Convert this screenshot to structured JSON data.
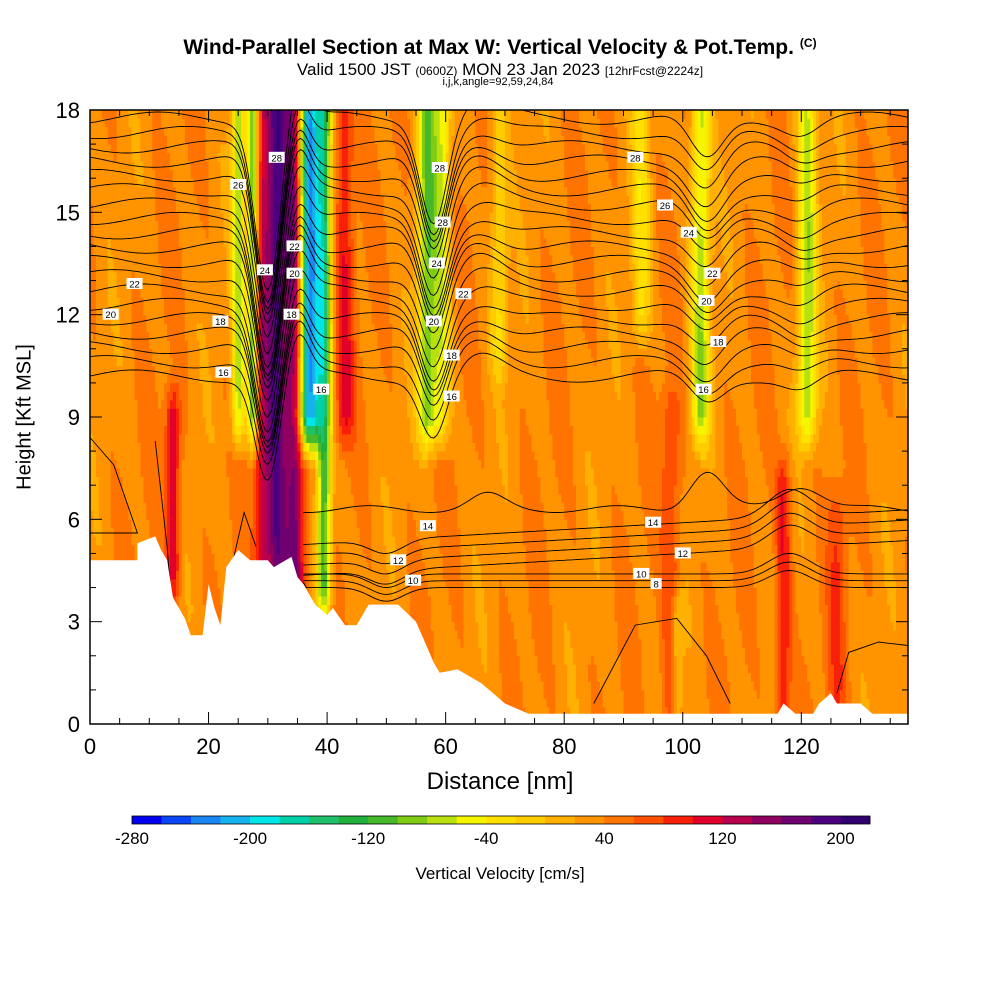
{
  "header": {
    "title": "Wind-Parallel Section at Max W: Vertical Velocity & Pot.Temp.",
    "title_mark": "(C)",
    "valid_prefix": "Valid 1500 JST",
    "valid_utc": "(0600Z)",
    "valid_date": "MON 23 Jan 2023",
    "forecast": "[12hrFcst@2224z]",
    "indices": "i,j,k,angle=92,59,24,84"
  },
  "chart_data": {
    "type": "heatmap",
    "xlabel": "Distance [nm]",
    "ylabel": "Height [Kft MSL]",
    "xlim": [
      0,
      138
    ],
    "ylim": [
      0,
      18
    ],
    "x_ticks": [
      0,
      20,
      40,
      60,
      80,
      100,
      120
    ],
    "y_ticks": [
      0,
      3,
      6,
      9,
      12,
      15,
      18
    ],
    "colorbar": {
      "label": "Vertical Velocity [cm/s]",
      "range": [
        -280,
        220
      ],
      "step": 20,
      "tick_values": [
        -280,
        -200,
        -120,
        -40,
        40,
        120,
        200
      ],
      "tick_labels": [
        "-280",
        "-200",
        "-120",
        "-40",
        "40",
        "120",
        "200"
      ],
      "colors": [
        "#0000ee",
        "#0a46f5",
        "#1a86f2",
        "#16b2f0",
        "#00e5e8",
        "#00d0a8",
        "#1ec06a",
        "#22b03c",
        "#46b82a",
        "#80cc14",
        "#b8e010",
        "#f5f500",
        "#ffe000",
        "#ffcc00",
        "#ffb000",
        "#ff9400",
        "#ff7400",
        "#ff5000",
        "#f82008",
        "#e0002a",
        "#b8004c",
        "#900060",
        "#6e0070",
        "#4c0080",
        "#30006e"
      ]
    },
    "terrain_profile_kft": [
      [
        0,
        4.8
      ],
      [
        8,
        4.8
      ],
      [
        8,
        5.3
      ],
      [
        11,
        5.5
      ],
      [
        12,
        5.1
      ],
      [
        13,
        4.8
      ],
      [
        14,
        3.7
      ],
      [
        16,
        3.1
      ],
      [
        17,
        2.6
      ],
      [
        19,
        2.6
      ],
      [
        20,
        4.1
      ],
      [
        21,
        3.4
      ],
      [
        22,
        2.9
      ],
      [
        23,
        4.6
      ],
      [
        25,
        5.1
      ],
      [
        27,
        4.8
      ],
      [
        30,
        4.8
      ],
      [
        31,
        4.6
      ],
      [
        34,
        4.9
      ],
      [
        35,
        4.3
      ],
      [
        36,
        4.1
      ],
      [
        38,
        3.5
      ],
      [
        40,
        3.2
      ],
      [
        41,
        3.4
      ],
      [
        43,
        2.9
      ],
      [
        45,
        2.9
      ],
      [
        47,
        3.5
      ],
      [
        48,
        3.5
      ],
      [
        52,
        3.5
      ],
      [
        55,
        3.0
      ],
      [
        56,
        2.6
      ],
      [
        58,
        1.8
      ],
      [
        59,
        1.5
      ],
      [
        62,
        1.6
      ],
      [
        66,
        1.2
      ],
      [
        68,
        0.9
      ],
      [
        70,
        0.6
      ],
      [
        74,
        0.3
      ],
      [
        116,
        0.3
      ],
      [
        117,
        0.6
      ],
      [
        119,
        0.3
      ],
      [
        122,
        0.3
      ],
      [
        123,
        0.6
      ],
      [
        125,
        0.9
      ],
      [
        126,
        0.6
      ],
      [
        130,
        0.6
      ],
      [
        132,
        0.3
      ],
      [
        138,
        0.3
      ]
    ],
    "w_field": {
      "background_cm_s": 35,
      "bands": [
        {
          "x": 14,
          "w": 120,
          "width": 1.2,
          "z_min": 4.5,
          "z_max": 9
        },
        {
          "x": 25,
          "w": -70,
          "width": 1.1,
          "z_min": 9,
          "z_max": 18
        },
        {
          "x": 27.5,
          "w": -110,
          "width": 1.0,
          "z_min": 9,
          "z_max": 18
        },
        {
          "x": 29,
          "w": 110,
          "width": 1.4,
          "z_min": 4,
          "z_max": 18
        },
        {
          "x": 31.5,
          "w": 180,
          "width": 1.7,
          "z_min": 4,
          "z_max": 18
        },
        {
          "x": 34.5,
          "w": 170,
          "width": 1.6,
          "z_min": 4,
          "z_max": 18
        },
        {
          "x": 37,
          "w": -230,
          "width": 1.8,
          "z_min": 9,
          "z_max": 18
        },
        {
          "x": 39.5,
          "w": -120,
          "width": 1.2,
          "z_min": 4,
          "z_max": 18
        },
        {
          "x": 43,
          "w": 100,
          "width": 1.5,
          "z_min": 9,
          "z_max": 18
        },
        {
          "x": 57,
          "w": -90,
          "width": 1.7,
          "z_min": 9,
          "z_max": 18
        },
        {
          "x": 59.5,
          "w": -40,
          "width": 1.4,
          "z_min": 9,
          "z_max": 18
        },
        {
          "x": 69,
          "w": -20,
          "width": 1.5,
          "z_min": 11,
          "z_max": 18
        },
        {
          "x": 93,
          "w": -25,
          "width": 1.6,
          "z_min": 12,
          "z_max": 18
        },
        {
          "x": 98,
          "w": 80,
          "width": 1.6,
          "z_min": 0,
          "z_max": 9
        },
        {
          "x": 103,
          "w": -70,
          "width": 1.6,
          "z_min": 9,
          "z_max": 18
        },
        {
          "x": 117,
          "w": 100,
          "width": 1.3,
          "z_min": 0,
          "z_max": 7
        },
        {
          "x": 121,
          "w": -70,
          "width": 1.6,
          "z_min": 9,
          "z_max": 18
        },
        {
          "x": 126,
          "w": 75,
          "width": 1.5,
          "z_min": 0,
          "z_max": 6
        },
        {
          "x": 99,
          "w": -20,
          "width": 1.0,
          "z_min": 0,
          "z_max": 3
        }
      ]
    },
    "theta_contours": {
      "labels": [
        {
          "text": "28",
          "x": 31.5,
          "y": 16.6
        },
        {
          "text": "26",
          "x": 25,
          "y": 15.8
        },
        {
          "text": "24",
          "x": 29.5,
          "y": 13.3
        },
        {
          "text": "22",
          "x": 7.5,
          "y": 12.9
        },
        {
          "text": "20",
          "x": 3.5,
          "y": 12.0
        },
        {
          "text": "18",
          "x": 22,
          "y": 11.8
        },
        {
          "text": "16",
          "x": 22.5,
          "y": 10.3
        },
        {
          "text": "22",
          "x": 34.5,
          "y": 14.0
        },
        {
          "text": "20",
          "x": 34.5,
          "y": 13.2
        },
        {
          "text": "18",
          "x": 34,
          "y": 12.0
        },
        {
          "text": "16",
          "x": 39,
          "y": 9.8
        },
        {
          "text": "28",
          "x": 59,
          "y": 16.3
        },
        {
          "text": "28",
          "x": 59.5,
          "y": 14.7
        },
        {
          "text": "24",
          "x": 58.5,
          "y": 13.5
        },
        {
          "text": "22",
          "x": 63,
          "y": 12.6
        },
        {
          "text": "20",
          "x": 58,
          "y": 11.8
        },
        {
          "text": "18",
          "x": 61,
          "y": 10.8
        },
        {
          "text": "16",
          "x": 61,
          "y": 9.6
        },
        {
          "text": "28",
          "x": 92,
          "y": 16.6
        },
        {
          "text": "26",
          "x": 97,
          "y": 15.2
        },
        {
          "text": "24",
          "x": 101,
          "y": 14.4
        },
        {
          "text": "22",
          "x": 105,
          "y": 13.2
        },
        {
          "text": "20",
          "x": 104,
          "y": 12.4
        },
        {
          "text": "18",
          "x": 106,
          "y": 11.2
        },
        {
          "text": "16",
          "x": 103.5,
          "y": 9.8
        },
        {
          "text": "14",
          "x": 57,
          "y": 5.8
        },
        {
          "text": "14",
          "x": 95,
          "y": 5.9
        },
        {
          "text": "12",
          "x": 52,
          "y": 4.8
        },
        {
          "text": "12",
          "x": 100,
          "y": 5.0
        },
        {
          "text": "10",
          "x": 54.5,
          "y": 4.2
        },
        {
          "text": "10",
          "x": 93,
          "y": 4.4
        },
        {
          "text": "8",
          "x": 95.5,
          "y": 4.1
        }
      ]
    }
  }
}
